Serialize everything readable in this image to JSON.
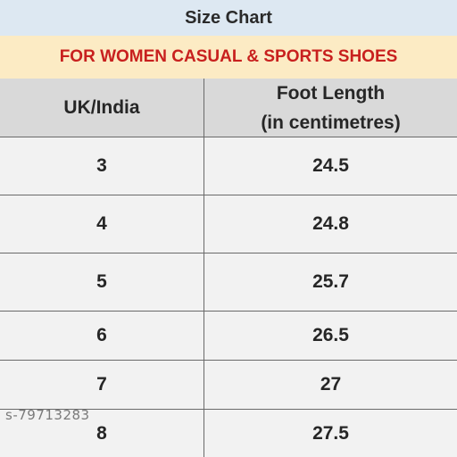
{
  "title": "Size Chart",
  "subtitle": "FOR WOMEN CASUAL & SPORTS SHOES",
  "colors": {
    "title_bg": "#dde8f2",
    "subtitle_bg": "#fcebc4",
    "subtitle_text": "#c8201e",
    "header_bg": "#d9d9d9",
    "row_bg": "#f2f2f2"
  },
  "table": {
    "headers": {
      "col1": "UK/India",
      "col2_line1": "Foot Length",
      "col2_line2": "(in centimetres)"
    },
    "rows": [
      {
        "size": "3",
        "length": "24.5"
      },
      {
        "size": "4",
        "length": "24.8"
      },
      {
        "size": "5",
        "length": "25.7"
      },
      {
        "size": "6",
        "length": "26.5"
      },
      {
        "size": "7",
        "length": "27"
      },
      {
        "size": "8",
        "length": "27.5"
      }
    ]
  },
  "watermark": "s-79713283"
}
